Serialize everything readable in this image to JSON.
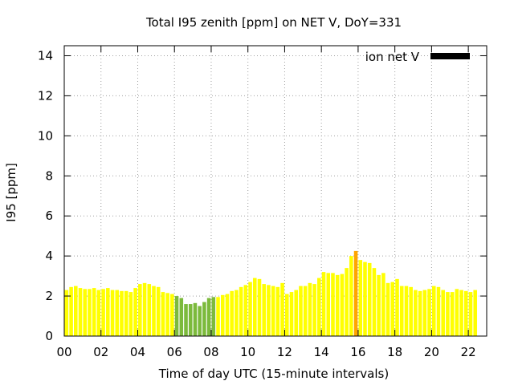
{
  "chart_data": {
    "type": "bar",
    "title": "Total I95 zenith [ppm] on NET V, DoY=331",
    "xlabel": "Time of day UTC (15-minute intervals)",
    "ylabel": "I95 [ppm]",
    "xlim": [
      0,
      23
    ],
    "ylim": [
      0,
      14.5
    ],
    "yticks": [
      0,
      2,
      4,
      6,
      8,
      10,
      12,
      14
    ],
    "xticks": [
      0,
      2,
      4,
      6,
      8,
      10,
      12,
      14,
      16,
      18,
      20,
      22
    ],
    "xtick_labels": [
      "00",
      "02",
      "04",
      "06",
      "08",
      "10",
      "12",
      "14",
      "16",
      "18",
      "20",
      "22"
    ],
    "interval_hours": 0.25,
    "grid": true,
    "legend": {
      "label": "ion net V",
      "color": "#000000",
      "position": "top-right"
    },
    "colors": {
      "normal": "#ffff00",
      "low": "#7cba3c",
      "peak": "#ffa500"
    },
    "series": [
      {
        "values": [
          2.3,
          2.45,
          2.5,
          2.4,
          2.35,
          2.35,
          2.4,
          2.3,
          2.35,
          2.4,
          2.3,
          2.3,
          2.25,
          2.25,
          2.2,
          2.4,
          2.6,
          2.65,
          2.6,
          2.5,
          2.45,
          2.2,
          2.15,
          2.1,
          2.0,
          1.9,
          1.6,
          1.6,
          1.65,
          1.5,
          1.7,
          1.9,
          1.95,
          1.95,
          2.05,
          2.1,
          2.25,
          2.3,
          2.45,
          2.55,
          2.7,
          2.9,
          2.85,
          2.6,
          2.55,
          2.5,
          2.45,
          2.65,
          2.1,
          2.2,
          2.3,
          2.5,
          2.5,
          2.65,
          2.6,
          2.9,
          3.2,
          3.15,
          3.15,
          3.05,
          3.1,
          3.4,
          4.0,
          4.25,
          3.8,
          3.7,
          3.65,
          3.4,
          3.05,
          3.15,
          2.65,
          2.7,
          2.85,
          2.5,
          2.5,
          2.45,
          2.3,
          2.25,
          2.3,
          2.35,
          2.5,
          2.45,
          2.3,
          2.2,
          2.2,
          2.35,
          2.3,
          2.25,
          2.2,
          2.3
        ],
        "colors": [
          "normal",
          "normal",
          "normal",
          "normal",
          "normal",
          "normal",
          "normal",
          "normal",
          "normal",
          "normal",
          "normal",
          "normal",
          "normal",
          "normal",
          "normal",
          "normal",
          "normal",
          "normal",
          "normal",
          "normal",
          "normal",
          "normal",
          "normal",
          "normal",
          "low",
          "low",
          "low",
          "low",
          "low",
          "low",
          "low",
          "low",
          "low",
          "normal",
          "normal",
          "normal",
          "normal",
          "normal",
          "normal",
          "normal",
          "normal",
          "normal",
          "normal",
          "normal",
          "normal",
          "normal",
          "normal",
          "normal",
          "normal",
          "normal",
          "normal",
          "normal",
          "normal",
          "normal",
          "normal",
          "normal",
          "normal",
          "normal",
          "normal",
          "normal",
          "normal",
          "normal",
          "normal",
          "peak",
          "normal",
          "normal",
          "normal",
          "normal",
          "normal",
          "normal",
          "normal",
          "normal",
          "normal",
          "normal",
          "normal",
          "normal",
          "normal",
          "normal",
          "normal",
          "normal",
          "normal",
          "normal",
          "normal",
          "normal",
          "normal",
          "normal",
          "normal",
          "normal",
          "normal",
          "normal"
        ]
      }
    ]
  }
}
